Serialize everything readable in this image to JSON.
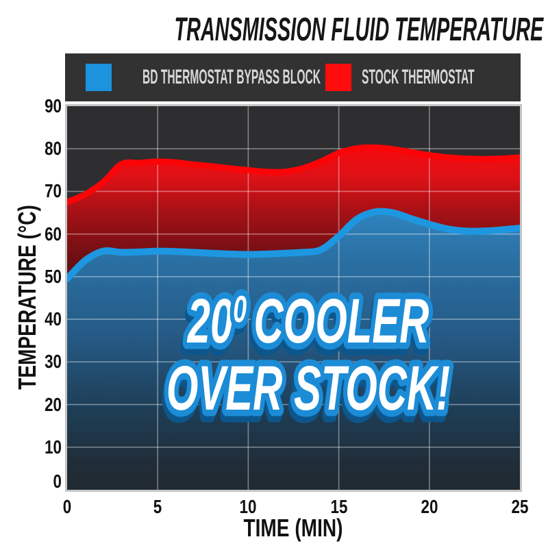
{
  "title": "TRANSMISSION FLUID TEMPERATURE",
  "legend": {
    "items": [
      {
        "label": "BD THERMOSTAT BYPASS BLOCK",
        "color": "#1b93dd"
      },
      {
        "label": "STOCK THERMOSTAT",
        "color": "#fe0c0c"
      }
    ]
  },
  "overlay": {
    "line1_num": "20",
    "line1_sup": "0",
    "line1_rest": "COOLER",
    "line2": "OVER STOCK!"
  },
  "axes": {
    "x_label": "TIME (MIN)",
    "y_label": "TEMPERATURE (°C)",
    "x_ticks": [
      0,
      5,
      10,
      15,
      20,
      25
    ],
    "y_ticks": [
      0,
      10,
      20,
      30,
      40,
      50,
      60,
      70,
      80,
      90
    ]
  },
  "colors": {
    "blue_line": "#1e97e1",
    "red_line": "#fa0407",
    "legend_bg": "#323233",
    "plot_bg": "#2e2d2f",
    "grid": "rgba(255,255,255,0.40)",
    "overlay_outline": "#1d8cd6",
    "overlay_shadow": "#11568c",
    "title_text": "#161616",
    "legend_text": "#d8d8d8"
  },
  "chart_data": {
    "type": "area",
    "title": "TRANSMISSION FLUID TEMPERATURE",
    "xlabel": "TIME (MIN)",
    "ylabel": "TEMPERATURE (°C)",
    "xlim": [
      0,
      25
    ],
    "ylim": [
      0,
      90
    ],
    "grid": true,
    "legend_position": "top",
    "annotation": "20⁰ COOLER OVER STOCK!",
    "x": [
      0,
      1,
      2,
      3,
      4,
      5,
      6,
      7,
      8,
      9,
      10,
      11,
      12,
      13,
      14,
      15,
      16,
      17,
      18,
      19,
      20,
      21,
      22,
      23,
      24,
      25
    ],
    "series": [
      {
        "name": "BD THERMOSTAT BYPASS BLOCK",
        "color": "#1e97e1",
        "values": [
          49.5,
          53.8,
          56.0,
          55.7,
          55.8,
          56.0,
          55.9,
          55.7,
          55.5,
          55.3,
          55.2,
          55.3,
          55.5,
          55.7,
          56.3,
          59.5,
          63.5,
          65.2,
          65.0,
          63.6,
          62.3,
          61.2,
          60.7,
          60.7,
          61.0,
          61.4
        ]
      },
      {
        "name": "STOCK THERMOSTAT",
        "color": "#fa0407",
        "values": [
          67.5,
          69.3,
          72.2,
          76.4,
          76.7,
          77.0,
          76.8,
          76.3,
          75.9,
          75.4,
          75.0,
          74.6,
          74.6,
          75.4,
          77.0,
          79.0,
          80.1,
          80.3,
          79.9,
          79.2,
          78.5,
          78.0,
          77.7,
          77.6,
          77.7,
          78.0
        ]
      }
    ]
  }
}
